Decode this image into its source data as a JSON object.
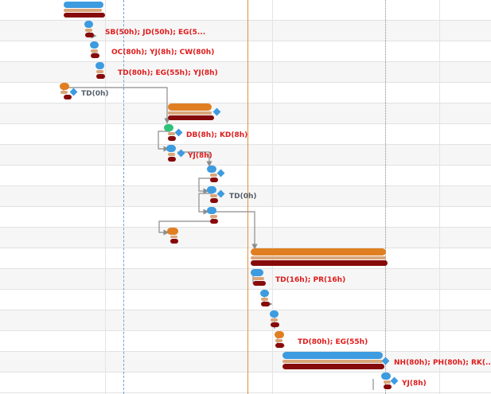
{
  "chart": {
    "name": "gantt-chart",
    "colors": {
      "blue": "#3d9be0",
      "orange": "#e07f22",
      "tan": "#d9a67a",
      "darkred": "#870a0a",
      "green": "#2ec27a",
      "label_red": "#e01b1b",
      "label_grey": "#555e6a",
      "link": "#8c8c8c"
    }
  },
  "tasks": [
    {
      "name": "task-row-1",
      "resource_label": ""
    },
    {
      "name": "task-row-2",
      "resource_label": "SB(50h); JD(50h); EG(5..."
    },
    {
      "name": "task-row-3",
      "resource_label": "OC(80h); YJ(8h); CW(80h)"
    },
    {
      "name": "task-row-4",
      "resource_label": "TD(80h); EG(55h); YJ(8h)"
    },
    {
      "name": "task-row-5",
      "resource_label": "TD(0h)"
    },
    {
      "name": "task-row-6",
      "resource_label": ""
    },
    {
      "name": "task-row-7",
      "resource_label": "DB(8h); KD(8h)"
    },
    {
      "name": "task-row-8",
      "resource_label": "YJ(8h)"
    },
    {
      "name": "task-row-9",
      "resource_label": ""
    },
    {
      "name": "task-row-10",
      "resource_label": "TD(0h)"
    },
    {
      "name": "task-row-11",
      "resource_label": ""
    },
    {
      "name": "task-row-12",
      "resource_label": ""
    },
    {
      "name": "task-row-13",
      "resource_label": ""
    },
    {
      "name": "task-row-14",
      "resource_label": "TD(16h); PR(16h)"
    },
    {
      "name": "task-row-15",
      "resource_label": ""
    },
    {
      "name": "task-row-16",
      "resource_label": ""
    },
    {
      "name": "task-row-17",
      "resource_label": "TD(80h); EG(55h)"
    },
    {
      "name": "task-row-18",
      "resource_label": "NH(80h); PH(80h); RK(..."
    },
    {
      "name": "task-row-19",
      "resource_label": "YJ(8h)"
    }
  ]
}
